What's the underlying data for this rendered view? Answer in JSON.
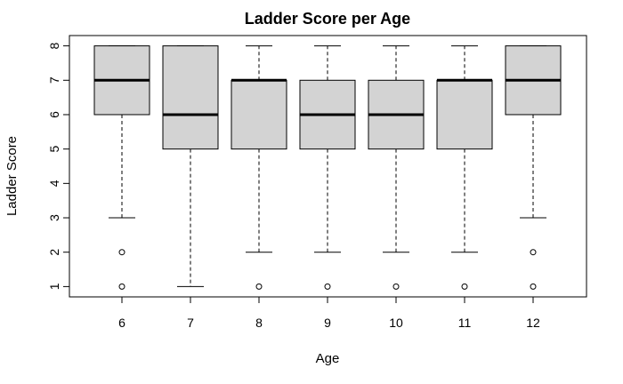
{
  "chart_data": {
    "type": "boxplot",
    "title": "Ladder Score per Age",
    "xlabel": "Age",
    "ylabel": "Ladder Score",
    "ylim": [
      0.7,
      8.3
    ],
    "y_ticks": [
      1,
      2,
      3,
      4,
      5,
      6,
      7,
      8
    ],
    "categories": [
      "6",
      "7",
      "8",
      "9",
      "10",
      "11",
      "12"
    ],
    "boxes": [
      {
        "label": "6",
        "whisker_low": 3,
        "q1": 6,
        "median": 7,
        "q3": 8,
        "whisker_high": 8,
        "outliers": [
          2,
          1
        ]
      },
      {
        "label": "7",
        "whisker_low": 1,
        "q1": 5,
        "median": 6,
        "q3": 8,
        "whisker_high": 8,
        "outliers": []
      },
      {
        "label": "8",
        "whisker_low": 2,
        "q1": 5,
        "median": 7,
        "q3": 7,
        "whisker_high": 8,
        "outliers": [
          1
        ]
      },
      {
        "label": "9",
        "whisker_low": 2,
        "q1": 5,
        "median": 6,
        "q3": 7,
        "whisker_high": 8,
        "outliers": [
          1
        ]
      },
      {
        "label": "10",
        "whisker_low": 2,
        "q1": 5,
        "median": 6,
        "q3": 7,
        "whisker_high": 8,
        "outliers": [
          1
        ]
      },
      {
        "label": "11",
        "whisker_low": 2,
        "q1": 5,
        "median": 7,
        "q3": 7,
        "whisker_high": 8,
        "outliers": [
          1
        ]
      },
      {
        "label": "12",
        "whisker_low": 3,
        "q1": 6,
        "median": 7,
        "q3": 8,
        "whisker_high": 8,
        "outliers": [
          2,
          1
        ]
      }
    ],
    "box_fill": "#d3d3d3",
    "line_color": "#000000",
    "grid": false
  }
}
